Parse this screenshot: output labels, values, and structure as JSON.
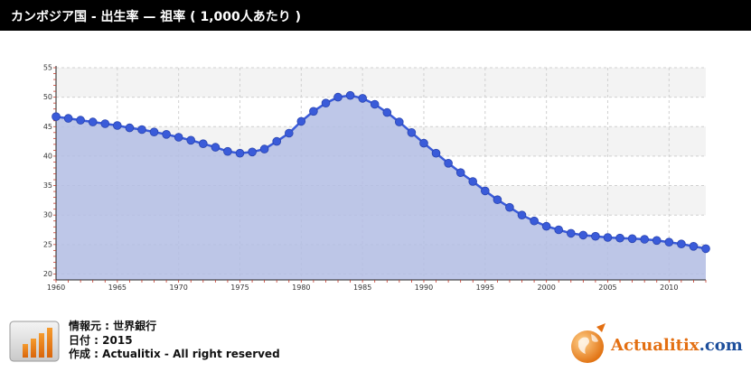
{
  "header": {
    "title": "カンボジア国 - 出生率 — 祖率 ( 1,000人あたり )"
  },
  "footer": {
    "source": "情報元 : 世界銀行",
    "date": "日付 : 2015",
    "credit": "作成 : Actualitix - All right reserved",
    "icon": "bar-chart-icon"
  },
  "brand": {
    "name_part1": "Actualitix",
    "name_part2": ".com",
    "icon": "globe-icon"
  },
  "colors": {
    "title_bar": "#000000",
    "area_fill": "#b3bde4",
    "line": "#3a5bd9",
    "marker": "#3a5bd9",
    "band": "#f3f3f3",
    "brand_orange": "#e36f12",
    "brand_blue": "#1e4f9c"
  },
  "chart_data": {
    "type": "area",
    "grid": true,
    "legend": "none",
    "xlim": [
      1960,
      2013
    ],
    "ylim": [
      19,
      55
    ],
    "x_ticks": [
      1960,
      1965,
      1970,
      1975,
      1980,
      1985,
      1990,
      1995,
      2000,
      2005,
      2010
    ],
    "y_ticks": [
      20,
      25,
      30,
      35,
      40,
      45,
      50,
      55
    ],
    "x": [
      1960,
      1961,
      1962,
      1963,
      1964,
      1965,
      1966,
      1967,
      1968,
      1969,
      1970,
      1971,
      1972,
      1973,
      1974,
      1975,
      1976,
      1977,
      1978,
      1979,
      1980,
      1981,
      1982,
      1983,
      1984,
      1985,
      1986,
      1987,
      1988,
      1989,
      1990,
      1991,
      1992,
      1993,
      1994,
      1995,
      1996,
      1997,
      1998,
      1999,
      2000,
      2001,
      2002,
      2003,
      2004,
      2005,
      2006,
      2007,
      2008,
      2009,
      2010,
      2011,
      2012,
      2013
    ],
    "series": [
      {
        "values": [
          46.7,
          46.4,
          46.1,
          45.8,
          45.5,
          45.2,
          44.8,
          44.5,
          44.1,
          43.7,
          43.2,
          42.7,
          42.1,
          41.5,
          40.8,
          40.5,
          40.7,
          41.2,
          42.5,
          43.9,
          45.9,
          47.6,
          49.0,
          50.0,
          50.3,
          49.8,
          48.8,
          47.4,
          45.8,
          44.0,
          42.2,
          40.5,
          38.8,
          37.2,
          35.7,
          34.1,
          32.6,
          31.3,
          30.0,
          29.0,
          28.1,
          27.5,
          26.9,
          26.6,
          26.4,
          26.2,
          26.1,
          26.0,
          25.9,
          25.7,
          25.4,
          25.1,
          24.7,
          24.3
        ]
      }
    ]
  }
}
